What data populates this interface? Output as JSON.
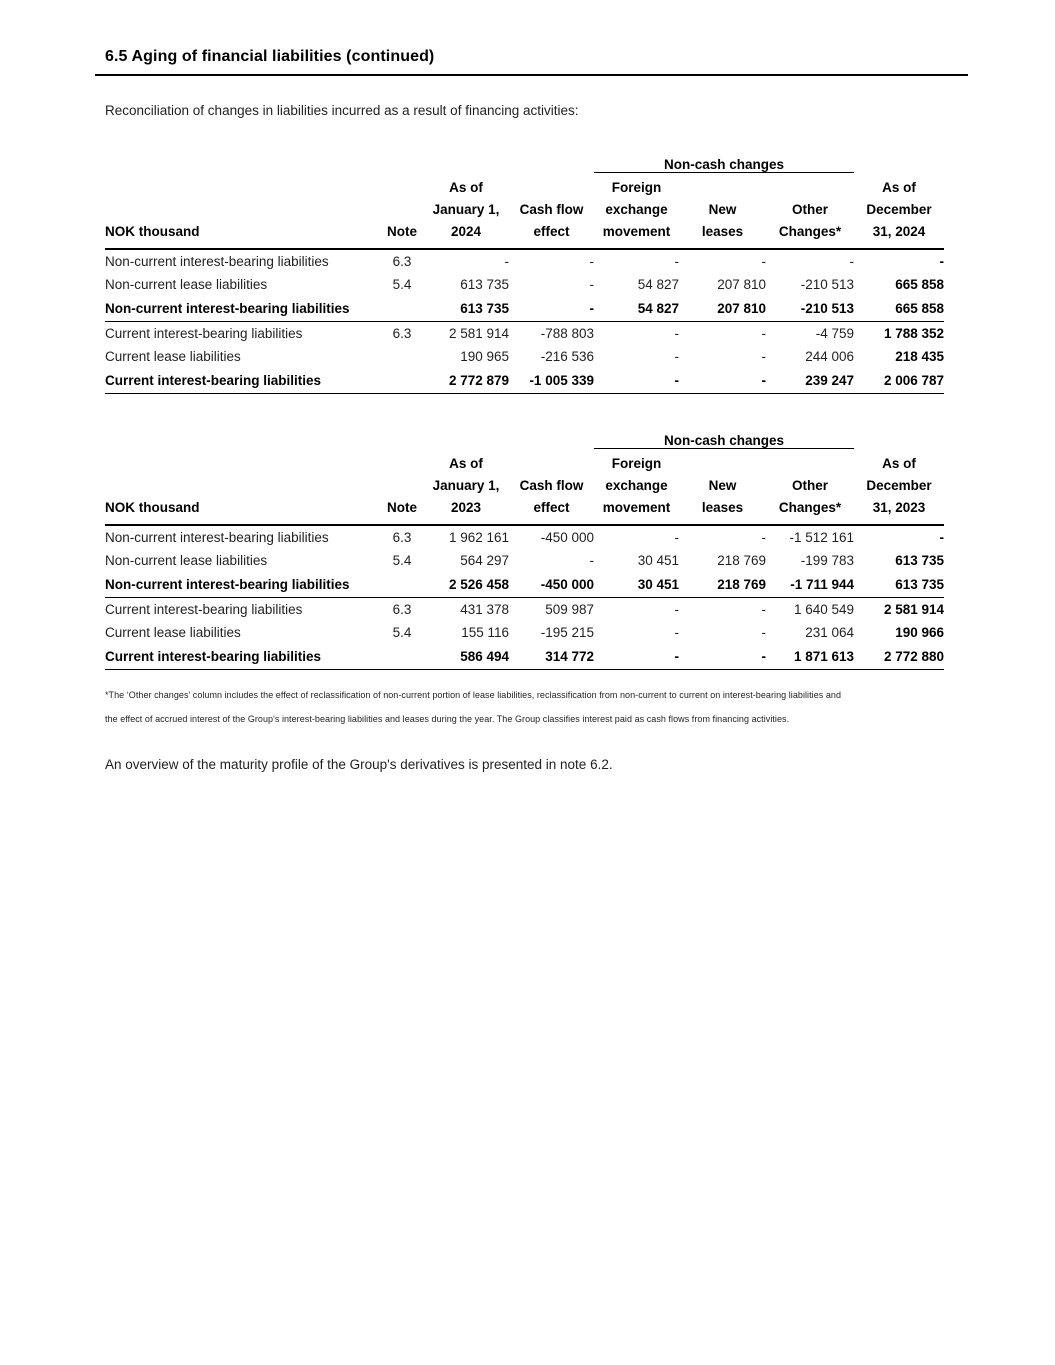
{
  "page": {
    "section_title": "6.5 Aging of financial liabilities (continued)",
    "intro": "Reconciliation of changes in liabilities incurred as a result of financing activities:",
    "footnote": "*The ‘Other changes’ column includes the effect of reclassification of non-current portion of lease liabilities, reclassification from non-current to current on interest-bearing liabilities and\nthe effect of accrued interest of the Group's interest-bearing liabilities and leases during the year. The Group classifies interest paid as cash flows from financing activities.",
    "closing_note": "An overview of the maturity profile of the Group's derivatives is presented in note 6.2."
  },
  "tables": [
    {
      "year": "2024",
      "group_header": "Non-cash changes",
      "columns": [
        "NOK thousand",
        "Note",
        "As of\nJanuary 1,\n2024",
        "Cash flow\neffect",
        "Foreign\nexchange\nmovement",
        "New\nleases",
        "Other\nChanges*",
        "As of\nDecember\n31, 2024"
      ],
      "rows": [
        {
          "style": "normal",
          "cells": [
            "Non-current interest-bearing liabilities",
            "6.3",
            "-",
            "-",
            "-",
            "-",
            "-",
            "-"
          ]
        },
        {
          "style": "normal",
          "cells": [
            "Non-current lease liabilities",
            "5.4",
            "613 735",
            "-",
            "54 827",
            "207 810",
            "-210 513",
            "665 858"
          ]
        },
        {
          "style": "total",
          "cells": [
            "Non-current interest-bearing liabilities",
            "",
            "613 735",
            "-",
            "54 827",
            "207 810",
            "-210 513",
            "665 858"
          ]
        },
        {
          "style": "normal",
          "cells": [
            "Current interest-bearing liabilities",
            "6.3",
            "2 581 914",
            "-788 803",
            "-",
            "-",
            "-4 759",
            "1 788 352"
          ]
        },
        {
          "style": "normal",
          "cells": [
            "Current lease liabilities",
            "",
            "190 965",
            "-216 536",
            "-",
            "-",
            "244 006",
            "218 435"
          ]
        },
        {
          "style": "total",
          "cells": [
            "Current interest-bearing liabilities",
            "",
            "2 772 879",
            "-1 005 339",
            "-",
            "-",
            "239 247",
            "2 006 787"
          ]
        }
      ]
    },
    {
      "year": "2023",
      "group_header": "Non-cash changes",
      "columns": [
        "NOK thousand",
        "Note",
        "As of\nJanuary 1,\n2023",
        "Cash flow\neffect",
        "Foreign\nexchange\nmovement",
        "New\nleases",
        "Other\nChanges*",
        "As of\nDecember\n31, 2023"
      ],
      "rows": [
        {
          "style": "normal",
          "cells": [
            "Non-current interest-bearing liabilities",
            "6.3",
            "1 962 161",
            "-450 000",
            "-",
            "-",
            "-1 512 161",
            "-"
          ]
        },
        {
          "style": "normal",
          "cells": [
            "Non-current lease liabilities",
            "5.4",
            "564 297",
            "-",
            "30 451",
            "218 769",
            "-199 783",
            "613 735"
          ]
        },
        {
          "style": "total",
          "cells": [
            "Non-current interest-bearing liabilities",
            "",
            "2 526 458",
            "-450 000",
            "30 451",
            "218 769",
            "-1 711 944",
            "613 735"
          ]
        },
        {
          "style": "normal",
          "cells": [
            "Current interest-bearing liabilities",
            "6.3",
            "431 378",
            "509 987",
            "-",
            "-",
            "1 640 549",
            "2 581 914"
          ]
        },
        {
          "style": "normal",
          "cells": [
            "Current lease liabilities",
            "5.4",
            "155 116",
            "-195 215",
            "-",
            "-",
            "231 064",
            "190 966"
          ]
        },
        {
          "style": "total",
          "cells": [
            "Current interest-bearing liabilities",
            "",
            "586 494",
            "314 772",
            "-",
            "-",
            "1 871 613",
            "2 772 880"
          ]
        }
      ]
    }
  ]
}
